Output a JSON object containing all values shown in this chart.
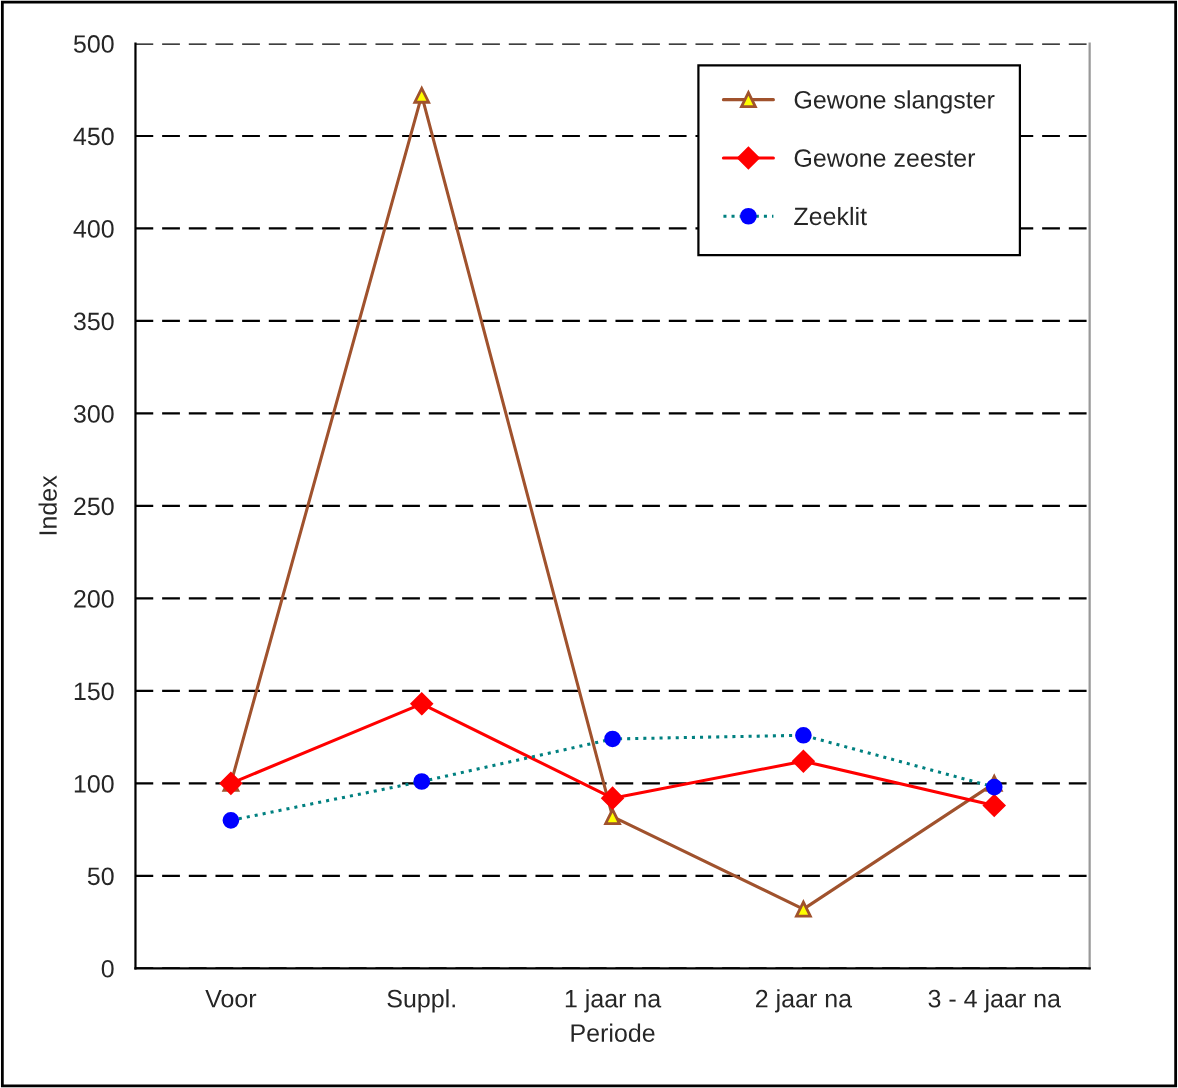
{
  "chart_data": {
    "type": "line",
    "xlabel": "Periode",
    "ylabel": "Index",
    "categories": [
      "Voor",
      "Suppl.",
      "1 jaar na",
      "2 jaar na",
      "3 - 4 jaar na"
    ],
    "series": [
      {
        "name": "Gewone slangster",
        "color": "#a0522d",
        "marker": "triangle",
        "line_style": "solid",
        "values": [
          100,
          472,
          82,
          32,
          100
        ]
      },
      {
        "name": "Gewone zeester",
        "color": "#ff0000",
        "marker": "diamond",
        "line_style": "solid",
        "values": [
          100,
          143,
          92,
          112,
          88
        ]
      },
      {
        "name": "Zeeklit",
        "color": "#008080",
        "marker": "circle",
        "line_style": "dotted",
        "values": [
          80,
          101,
          124,
          126,
          98
        ]
      }
    ],
    "ylim": [
      0,
      500
    ],
    "yticks": [
      0,
      50,
      100,
      150,
      200,
      250,
      300,
      350,
      400,
      450,
      500
    ],
    "grid": "y",
    "legend": "top right"
  }
}
